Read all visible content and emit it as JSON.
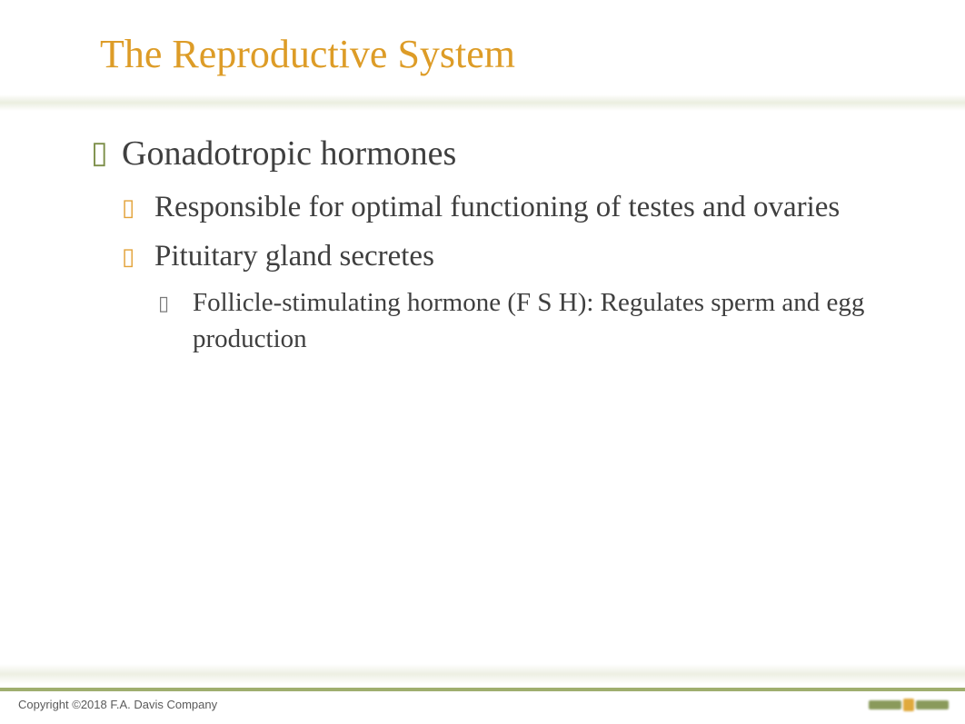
{
  "colors": {
    "title": "#dd9c27",
    "body_text": "#3f3f3f",
    "bullet_level1": "#7d8f4a",
    "bullet_level2": "#e3a33a",
    "bullet_level3": "#7a7a7a",
    "footer_line": "#9fae6f",
    "copyright": "#5a5a5a",
    "logo_bar": "#8a9a5b",
    "logo_dot": "#e0a93d"
  },
  "typography": {
    "title_fontsize": 44,
    "level1_fontsize": 38,
    "level2_fontsize": 33,
    "level3_fontsize": 29,
    "copyright_fontsize": 13
  },
  "title": "The Reproductive System",
  "content": {
    "level1": "Gonadotropic hormones",
    "level2a": "Responsible for optimal functioning of testes and ovaries",
    "level2b": "Pituitary gland secretes",
    "level3a": "Follicle-stimulating hormone (F S H): Regulates sperm and egg production"
  },
  "footer": {
    "copyright": "Copyright ©2018 F.A. Davis Company"
  },
  "bullets": {
    "glyph": "▯"
  }
}
